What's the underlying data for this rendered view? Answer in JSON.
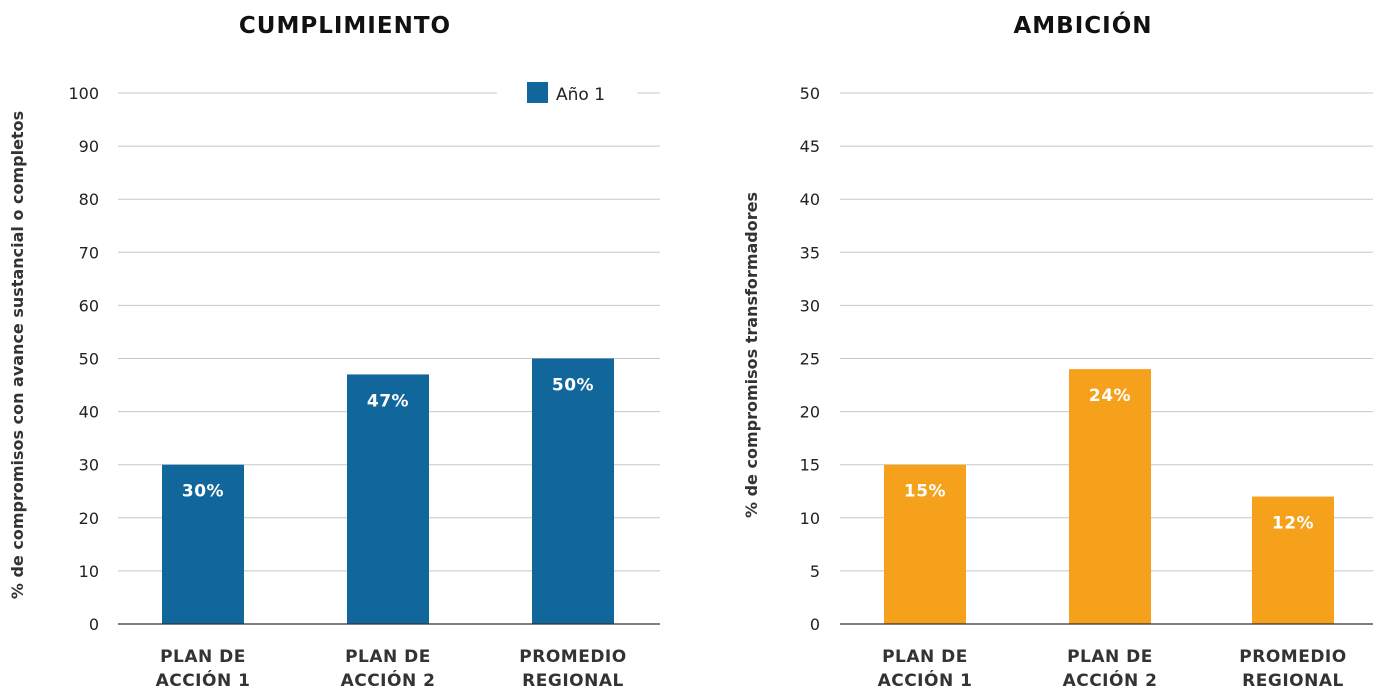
{
  "chart_data": [
    {
      "type": "bar",
      "title": "CUMPLIMIENTO",
      "xlabel": "",
      "ylabel": "% de compromisos con avance sustancial o completos",
      "categories": [
        [
          "PLAN DE",
          "ACCIÓN 1"
        ],
        [
          "PLAN DE",
          "ACCIÓN 2"
        ],
        [
          "PROMEDIO",
          "REGIONAL"
        ]
      ],
      "ylim": [
        0,
        100
      ],
      "yticks": [
        0,
        10,
        20,
        30,
        40,
        50,
        60,
        70,
        80,
        90,
        100
      ],
      "grid": true,
      "legend": {
        "placement": "top-right",
        "entries": [
          "Año 1"
        ]
      },
      "series": [
        {
          "name": "Año 1",
          "color": "#11669c",
          "values": [
            30,
            47,
            50
          ],
          "labels": [
            "30%",
            "47%",
            "50%"
          ]
        }
      ]
    },
    {
      "type": "bar",
      "title": "AMBICIÓN",
      "xlabel": "",
      "ylabel": "% de compromisos transformadores",
      "categories": [
        [
          "PLAN DE",
          "ACCIÓN 1"
        ],
        [
          "PLAN DE",
          "ACCIÓN 2"
        ],
        [
          "PROMEDIO",
          "REGIONAL"
        ]
      ],
      "ylim": [
        0,
        50
      ],
      "yticks": [
        0,
        5,
        10,
        15,
        20,
        25,
        30,
        35,
        40,
        45,
        50
      ],
      "grid": true,
      "series": [
        {
          "color": "#f5a11c",
          "values": [
            15,
            24,
            12
          ],
          "labels": [
            "15%",
            "24%",
            "12%"
          ]
        }
      ]
    }
  ]
}
